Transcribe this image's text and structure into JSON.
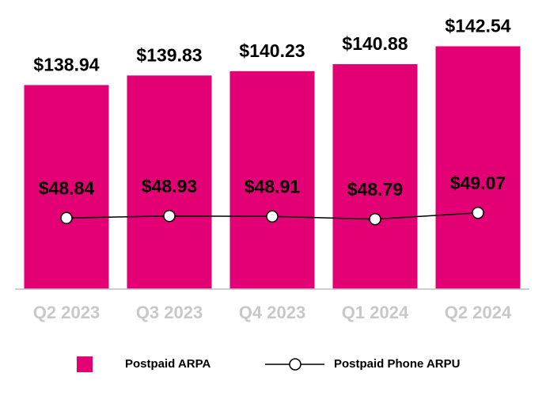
{
  "chart_data": {
    "type": "bar",
    "categories": [
      "Q2 2023",
      "Q3 2023",
      "Q4 2023",
      "Q1 2024",
      "Q2 2024"
    ],
    "series": [
      {
        "name": "Postpaid ARPA",
        "type": "bar",
        "color": "#e20074",
        "values": [
          138.94,
          139.83,
          140.23,
          140.88,
          142.54
        ],
        "value_labels": [
          "$138.94",
          "$139.83",
          "$140.23",
          "$140.88",
          "$142.54"
        ]
      },
      {
        "name": "Postpaid Phone ARPU",
        "type": "line",
        "axis": "y2",
        "color": "#000000",
        "values": [
          48.84,
          48.93,
          48.91,
          48.79,
          49.07
        ],
        "value_labels": [
          "$48.84",
          "$48.93",
          "$48.91",
          "$48.79",
          "$49.07"
        ]
      }
    ],
    "ylim": [
      120,
      145
    ],
    "y2lim": [
      45.7,
      57.6
    ],
    "legend": "bottom"
  }
}
